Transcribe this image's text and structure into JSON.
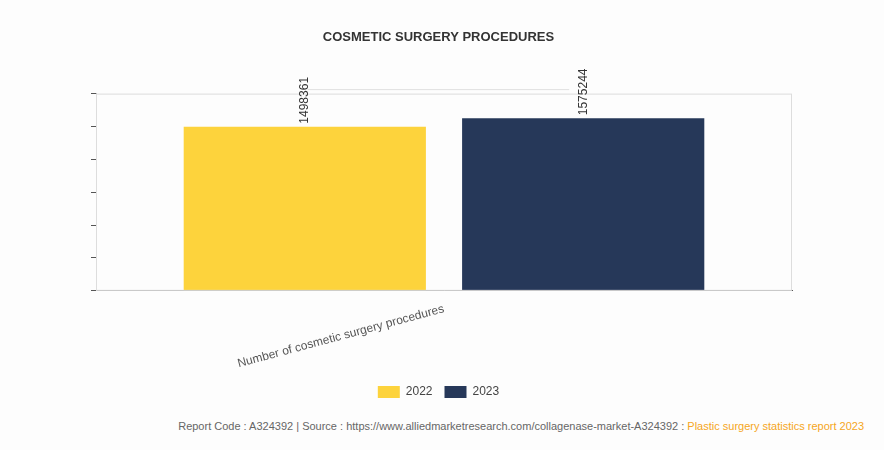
{
  "chart_data": {
    "type": "bar",
    "title": "COSMETIC SURGERY PROCEDURES",
    "categories": [
      "Number of cosmetic surgery procedures"
    ],
    "series": [
      {
        "name": "2022",
        "color": "#fdd33c",
        "values": [
          1498361
        ]
      },
      {
        "name": "2023",
        "color": "#263859",
        "values": [
          1575244
        ]
      }
    ],
    "ylim": [
      0,
      1800000
    ],
    "yticks": [
      0,
      300000,
      600000,
      900000,
      1200000,
      1500000,
      1800000
    ],
    "grid": false,
    "legend": "bottom",
    "data_labels": true,
    "tick_labels": "x",
    "source": "Report Code : A324392  |  Source : https://www.alliedmarketresearch.com/collagenase-market-A324392 : ",
    "source_link": "Plastic surgery statistics report 2023"
  }
}
